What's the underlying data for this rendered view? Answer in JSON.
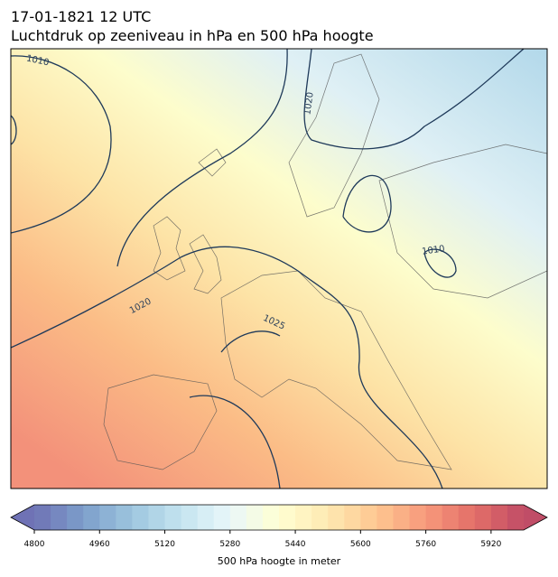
{
  "title": {
    "line1": "17-01-1821 12 UTC",
    "line2": "Luchtdruk op zeeniveau in hPa en 500 hPa hoogte"
  },
  "contour_labels": [
    "1010",
    "1020",
    "1010",
    "1020",
    "1025"
  ],
  "colorbar": {
    "label": "500 hPa hoogte in meter",
    "range": [
      4800,
      6000
    ],
    "level_step": 40,
    "ticks": [
      4800,
      4960,
      5120,
      5280,
      5440,
      5600,
      5760,
      5920
    ]
  }
}
